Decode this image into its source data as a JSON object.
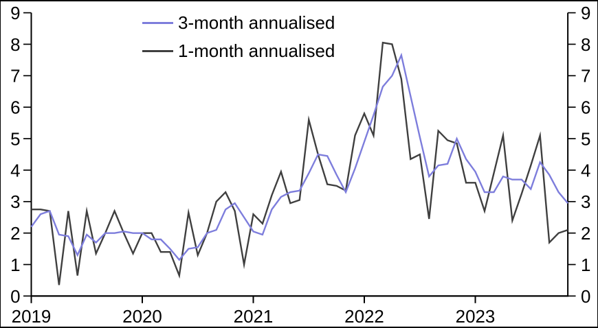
{
  "legend": {
    "items": [
      {
        "label": "3-month annualised",
        "color": "#7D7DDC"
      },
      {
        "label": "1-month annualised",
        "color": "#3F3F3F"
      }
    ]
  },
  "axes": {
    "y_left_labels": [
      "0",
      "1",
      "2",
      "3",
      "4",
      "5",
      "6",
      "7",
      "8",
      "9"
    ],
    "y_right_labels": [
      "0",
      "1",
      "2",
      "3",
      "4",
      "5",
      "6",
      "7",
      "8",
      "9"
    ],
    "x_labels": [
      "2019",
      "2020",
      "2021",
      "2022",
      "2023"
    ]
  },
  "chart_data": {
    "type": "line",
    "x_start": "2019-01",
    "x_frequency": "monthly",
    "x_tick_labels": [
      "2019",
      "2020",
      "2021",
      "2022",
      "2023"
    ],
    "ylim": [
      0,
      9
    ],
    "y_ticks": [
      0,
      1,
      2,
      3,
      4,
      5,
      6,
      7,
      8,
      9
    ],
    "grid": false,
    "legend_position": "top-left-inside",
    "x_labels": [
      "2019-01",
      "2019-02",
      "2019-03",
      "2019-04",
      "2019-05",
      "2019-06",
      "2019-07",
      "2019-08",
      "2019-09",
      "2019-10",
      "2019-11",
      "2019-12",
      "2020-01",
      "2020-02",
      "2020-03",
      "2020-04",
      "2020-05",
      "2020-06",
      "2020-07",
      "2020-08",
      "2020-09",
      "2020-10",
      "2020-11",
      "2020-12",
      "2021-01",
      "2021-02",
      "2021-03",
      "2021-04",
      "2021-05",
      "2021-06",
      "2021-07",
      "2021-08",
      "2021-09",
      "2021-10",
      "2021-11",
      "2021-12",
      "2022-01",
      "2022-02",
      "2022-03",
      "2022-04",
      "2022-05",
      "2022-06",
      "2022-07",
      "2022-08",
      "2022-09",
      "2022-10",
      "2022-11",
      "2022-12",
      "2023-01",
      "2023-02",
      "2023-03",
      "2023-04",
      "2023-05",
      "2023-06",
      "2023-07",
      "2023-08",
      "2023-09",
      "2023-10",
      "2023-11"
    ],
    "series": [
      {
        "name": "3-month annualised",
        "color": "#7D7DDC",
        "values": [
          2.2,
          2.6,
          2.7,
          1.95,
          1.9,
          1.3,
          1.95,
          1.7,
          2.0,
          2.0,
          2.05,
          2.0,
          2.0,
          1.8,
          1.8,
          1.5,
          1.15,
          1.5,
          1.55,
          2.0,
          2.1,
          2.75,
          2.95,
          2.5,
          2.05,
          1.95,
          2.75,
          3.15,
          3.3,
          3.35,
          3.9,
          4.5,
          4.45,
          3.85,
          3.3,
          4.05,
          4.9,
          5.75,
          6.65,
          7.0,
          7.65,
          6.35,
          5.05,
          3.8,
          4.15,
          4.2,
          5.0,
          4.35,
          3.95,
          3.3,
          3.3,
          3.8,
          3.7,
          3.7,
          3.4,
          4.25,
          3.85,
          3.3,
          2.95
        ]
      },
      {
        "name": "1-month annualised",
        "color": "#3F3F3F",
        "values": [
          2.75,
          2.75,
          2.7,
          0.35,
          2.7,
          0.65,
          2.7,
          1.35,
          2.0,
          2.7,
          2.0,
          1.35,
          2.0,
          2.0,
          1.4,
          1.4,
          0.65,
          2.65,
          1.3,
          2.0,
          3.0,
          3.3,
          2.7,
          1.0,
          2.6,
          2.3,
          3.2,
          3.95,
          2.95,
          3.05,
          5.6,
          4.5,
          3.55,
          3.5,
          3.35,
          5.1,
          5.8,
          5.1,
          8.05,
          8.0,
          6.9,
          4.35,
          4.5,
          2.45,
          5.25,
          4.95,
          4.85,
          3.6,
          3.6,
          2.7,
          3.9,
          5.1,
          2.4,
          3.25,
          4.15,
          5.1,
          1.7,
          2.0,
          2.1
        ]
      }
    ]
  }
}
